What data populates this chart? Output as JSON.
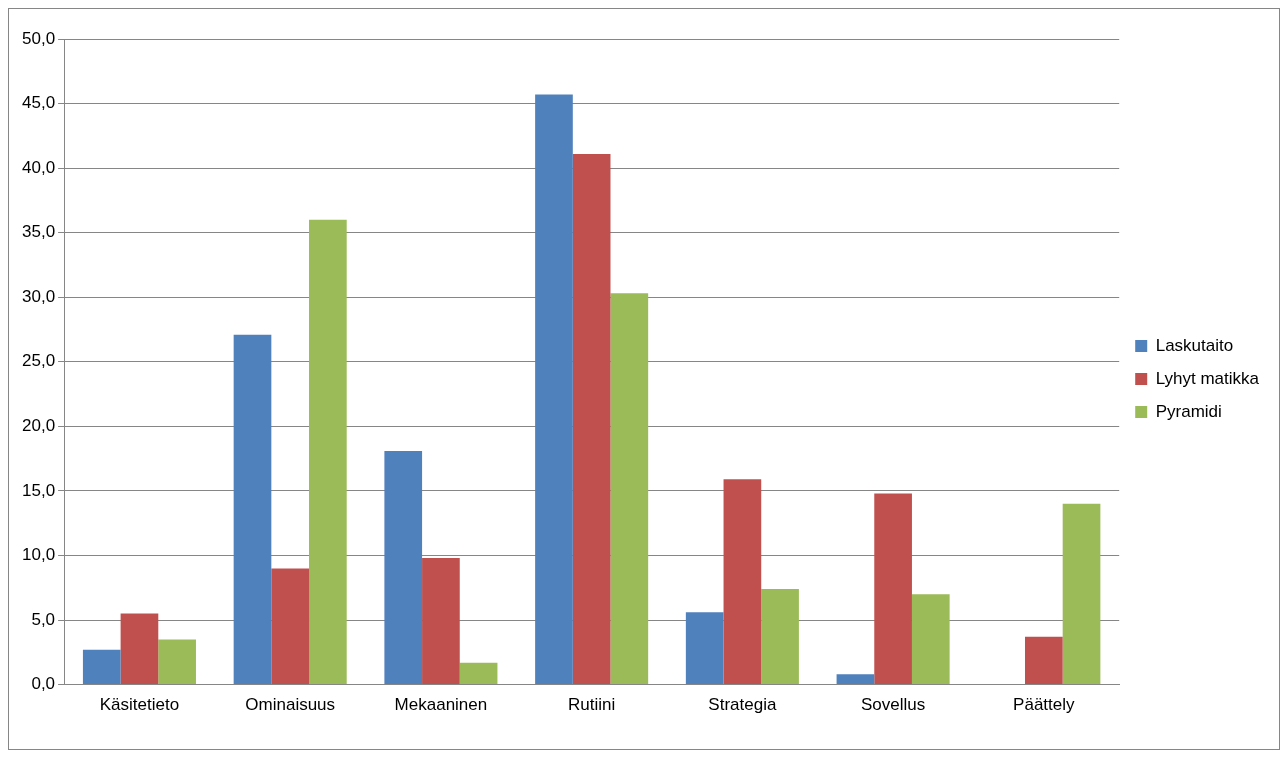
{
  "chart_data": {
    "type": "bar",
    "categories": [
      "Käsitetieto",
      "Ominaisuus",
      "Mekaaninen",
      "Rutiini",
      "Strategia",
      "Sovellus",
      "Päättely"
    ],
    "series": [
      {
        "name": "Laskutaito",
        "color": "#4f81bd",
        "values": [
          2.7,
          27.1,
          18.1,
          45.7,
          5.6,
          0.8,
          null
        ]
      },
      {
        "name": "Lyhyt matikka",
        "color": "#c0504d",
        "values": [
          5.5,
          9.0,
          9.8,
          41.1,
          15.9,
          14.8,
          3.7
        ]
      },
      {
        "name": "Pyramidi",
        "color": "#9bbb59",
        "values": [
          3.5,
          36.0,
          1.7,
          30.3,
          7.4,
          7.0,
          14.0
        ]
      }
    ],
    "ylim": [
      0,
      50
    ],
    "yticks": [
      {
        "value": 0,
        "label": "0,0"
      },
      {
        "value": 5,
        "label": "5,0"
      },
      {
        "value": 10,
        "label": "10,0"
      },
      {
        "value": 15,
        "label": "15,0"
      },
      {
        "value": 20,
        "label": "20,0"
      },
      {
        "value": 25,
        "label": "25,0"
      },
      {
        "value": 30,
        "label": "30,0"
      },
      {
        "value": 35,
        "label": "35,0"
      },
      {
        "value": 40,
        "label": "40,0"
      },
      {
        "value": 45,
        "label": "45,0"
      },
      {
        "value": 50,
        "label": "50,0"
      }
    ],
    "grid": "y",
    "legend": "right"
  }
}
